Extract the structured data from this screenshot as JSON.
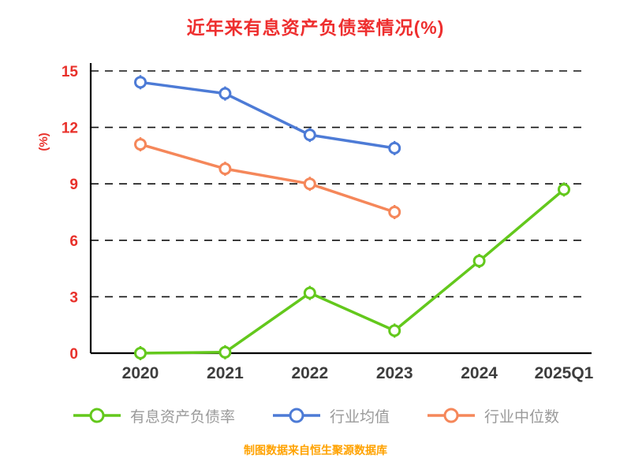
{
  "chart_data": {
    "type": "line",
    "title": "近年来有息资产负债率情况(%)",
    "ylabel": "(%)",
    "categories": [
      "2020",
      "2021",
      "2022",
      "2023",
      "2024",
      "2025Q1"
    ],
    "series": [
      {
        "name": "有息资产负债率",
        "color": "#63c81c",
        "values": [
          0,
          0.05,
          3.2,
          1.2,
          4.9,
          8.7
        ]
      },
      {
        "name": "行业均值",
        "color": "#4d7bd6",
        "values": [
          14.4,
          13.8,
          11.6,
          10.9,
          null,
          null
        ]
      },
      {
        "name": "行业中位数",
        "color": "#f5875a",
        "values": [
          11.1,
          9.8,
          9.0,
          7.5,
          null,
          null
        ]
      }
    ],
    "ylim": [
      0,
      15
    ],
    "yticks": [
      0,
      3,
      6,
      9,
      12,
      15
    ],
    "grid": "horizontal-dashed",
    "legend_position": "bottom",
    "marker": "circle-with-whisker",
    "colors": {
      "title": "#ee2f2f",
      "ytick": "#e8302a",
      "xtick": "#3d3d3d",
      "axis": "#000000",
      "grid": "#111111"
    }
  },
  "footer": {
    "source_note": "制图数据来自恒生聚源数据库",
    "color": "#ffa200"
  }
}
